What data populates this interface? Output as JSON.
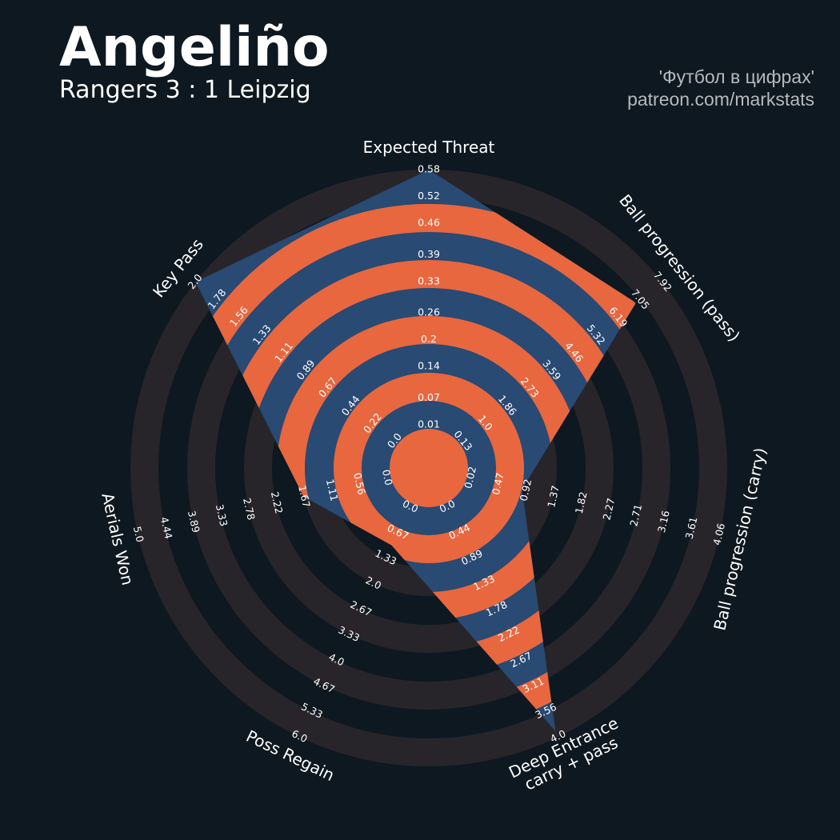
{
  "chart_data": {
    "type": "radar",
    "title": "Angeliño",
    "subtitle": "Rangers 3 : 1 Leipzig",
    "annotations": [
      "'Футбол в цифрах'",
      "patreon.com/markstats"
    ],
    "categories": [
      [
        "Expected Threat"
      ],
      [
        "Ball progression (pass)"
      ],
      [
        "Ball progression (carry)"
      ],
      [
        "Deep Entrance",
        "carry + pass"
      ],
      [
        "Poss Regain"
      ],
      [
        "Aerials Won"
      ],
      [
        "Key Pass"
      ]
    ],
    "values": [
      0.58,
      6.9,
      0.85,
      3.9,
      1.0,
      1.67,
      2.0
    ],
    "color": "#284a73",
    "ring_color": "#e8673f",
    "background_ring_color": "#28252a",
    "axes": [
      {
        "lim": [
          0.01,
          0.58
        ],
        "ticks": [
          0.01,
          0.07,
          0.14,
          0.2,
          0.26,
          0.33,
          0.39,
          0.46,
          0.52,
          0.58
        ]
      },
      {
        "lim": [
          0.13,
          7.92
        ],
        "ticks": [
          0.13,
          {
            "value": 1,
            "label": "1.0"
          },
          1.86,
          2.73,
          3.59,
          4.46,
          5.32,
          6.19,
          7.05,
          7.92
        ]
      },
      {
        "lim": [
          0.02,
          4.06
        ],
        "ticks": [
          0.02,
          0.47,
          0.92,
          1.37,
          1.82,
          2.27,
          2.71,
          3.16,
          3.61,
          4.06
        ]
      },
      {
        "lim": [
          0,
          4
        ],
        "ticks": [
          {
            "value": 0,
            "label": "0.0"
          },
          0.44,
          0.89,
          1.33,
          1.78,
          2.22,
          2.67,
          3.11,
          3.56,
          {
            "value": 4,
            "label": "4.0"
          }
        ]
      },
      {
        "lim": [
          0,
          6
        ],
        "ticks": [
          {
            "value": 0,
            "label": "0.0"
          },
          0.67,
          1.33,
          {
            "value": 2,
            "label": "2.0"
          },
          2.67,
          3.33,
          {
            "value": 4,
            "label": "4.0"
          },
          4.67,
          5.33,
          {
            "value": 6,
            "label": "6.0"
          }
        ]
      },
      {
        "lim": [
          0,
          5
        ],
        "ticks": [
          {
            "value": 0,
            "label": "0.0"
          },
          0.56,
          1.11,
          1.67,
          2.22,
          2.78,
          3.33,
          3.89,
          4.44,
          {
            "value": 5,
            "label": "5.0"
          }
        ]
      },
      {
        "lim": [
          0,
          2
        ],
        "ticks": [
          {
            "value": 0,
            "label": "0.0"
          },
          0.22,
          0.44,
          0.67,
          0.89,
          1.11,
          1.33,
          1.56,
          1.78,
          {
            "value": 2,
            "label": "2.0"
          }
        ]
      }
    ]
  }
}
